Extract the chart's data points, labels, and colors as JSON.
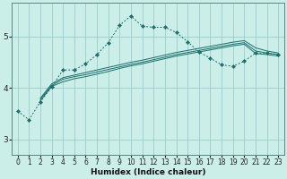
{
  "xlabel": "Humidex (Indice chaleur)",
  "background_color": "#cceee8",
  "grid_color": "#99cccc",
  "line_color": "#1a6e6a",
  "xlim": [
    -0.5,
    23.5
  ],
  "ylim": [
    2.7,
    5.65
  ],
  "yticks": [
    3,
    4,
    5
  ],
  "xticks": [
    0,
    1,
    2,
    3,
    4,
    5,
    6,
    7,
    8,
    9,
    10,
    11,
    12,
    13,
    14,
    15,
    16,
    17,
    18,
    19,
    20,
    21,
    22,
    23
  ],
  "curve1_x": [
    0,
    1,
    2,
    3,
    4,
    5,
    6,
    7,
    8,
    9,
    10,
    11,
    12,
    13,
    14,
    15,
    16,
    17,
    18,
    19,
    20,
    21,
    22,
    23
  ],
  "curve1_y": [
    3.55,
    3.38,
    3.73,
    4.02,
    4.35,
    4.35,
    4.47,
    4.65,
    4.88,
    5.22,
    5.4,
    5.2,
    5.18,
    5.18,
    5.08,
    4.9,
    4.7,
    4.58,
    4.45,
    4.42,
    4.52,
    4.68,
    4.68,
    4.65
  ],
  "curve2_x": [
    2,
    3,
    4,
    5,
    6,
    7,
    8,
    9,
    10,
    11,
    12,
    13,
    14,
    15,
    16,
    17,
    18,
    19,
    20,
    21,
    22,
    23
  ],
  "curve2_y": [
    3.75,
    4.03,
    4.12,
    4.18,
    4.22,
    4.27,
    4.32,
    4.38,
    4.43,
    4.47,
    4.52,
    4.57,
    4.62,
    4.66,
    4.7,
    4.74,
    4.78,
    4.82,
    4.85,
    4.67,
    4.65,
    4.62
  ],
  "curve3_x": [
    2,
    3,
    4,
    5,
    6,
    7,
    8,
    9,
    10,
    11,
    12,
    13,
    14,
    15,
    16,
    17,
    18,
    19,
    20,
    21,
    22,
    23
  ],
  "curve3_y": [
    3.78,
    4.05,
    4.17,
    4.22,
    4.26,
    4.31,
    4.36,
    4.41,
    4.46,
    4.5,
    4.55,
    4.6,
    4.65,
    4.69,
    4.73,
    4.77,
    4.81,
    4.85,
    4.88,
    4.72,
    4.68,
    4.65
  ],
  "curve4_x": [
    2,
    3,
    4,
    5,
    6,
    7,
    8,
    9,
    10,
    11,
    12,
    13,
    14,
    15,
    16,
    17,
    18,
    19,
    20,
    21,
    22,
    23
  ],
  "curve4_y": [
    3.8,
    4.08,
    4.2,
    4.25,
    4.3,
    4.35,
    4.4,
    4.45,
    4.5,
    4.54,
    4.59,
    4.64,
    4.69,
    4.73,
    4.77,
    4.81,
    4.85,
    4.89,
    4.92,
    4.78,
    4.72,
    4.68
  ]
}
